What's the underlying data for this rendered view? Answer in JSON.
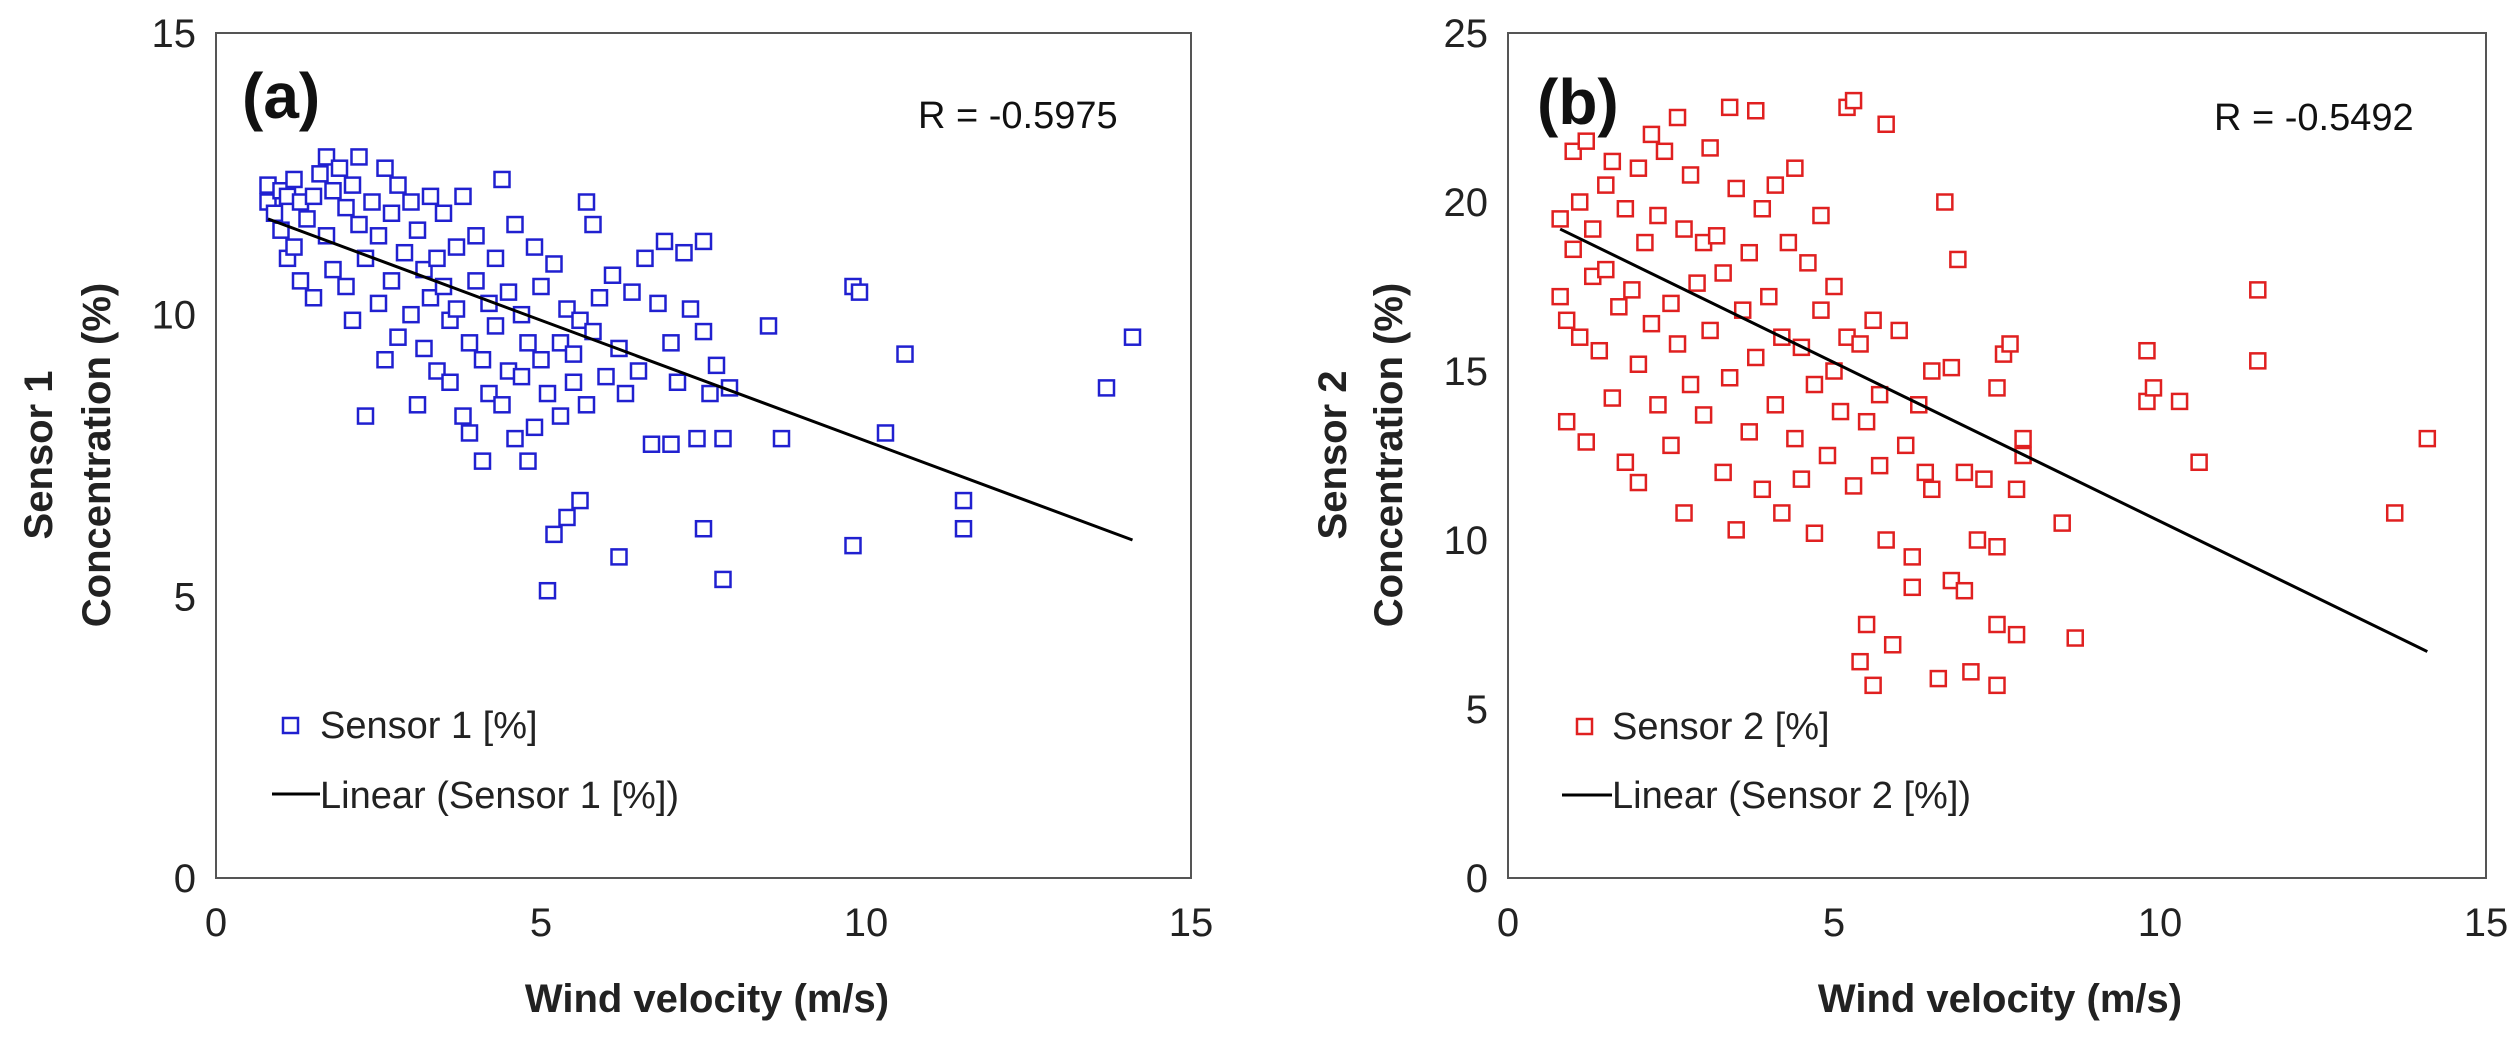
{
  "chart_data": [
    {
      "type": "scatter",
      "panel_label": "(a)",
      "annotation": "R = -0.5975",
      "xlabel": "Wind velocity (m/s)",
      "ylabel_line1": "Sensor 1",
      "ylabel_line2": "Concentration (%)",
      "xlim": [
        0,
        15
      ],
      "ylim": [
        0,
        15
      ],
      "xticks": [
        "0",
        "5",
        "10",
        "15"
      ],
      "yticks": [
        "0",
        "5",
        "10",
        "15"
      ],
      "legend_position": "bottom-left",
      "marker_color": "#2020d0",
      "trend_color": "#000000",
      "series": [
        {
          "name": "Sensor 1 [%]",
          "points": [
            [
              0.8,
              12.3
            ],
            [
              0.8,
              12.0
            ],
            [
              0.9,
              11.8
            ],
            [
              1.0,
              12.2
            ],
            [
              1.0,
              11.5
            ],
            [
              1.1,
              11.0
            ],
            [
              1.1,
              12.1
            ],
            [
              1.2,
              12.4
            ],
            [
              1.2,
              11.2
            ],
            [
              1.3,
              10.6
            ],
            [
              1.3,
              12.0
            ],
            [
              1.4,
              11.7
            ],
            [
              1.5,
              12.1
            ],
            [
              1.5,
              10.3
            ],
            [
              1.6,
              12.5
            ],
            [
              1.7,
              12.8
            ],
            [
              1.7,
              11.4
            ],
            [
              1.8,
              12.2
            ],
            [
              1.8,
              10.8
            ],
            [
              1.9,
              12.6
            ],
            [
              2.0,
              11.9
            ],
            [
              2.0,
              10.5
            ],
            [
              2.1,
              12.3
            ],
            [
              2.1,
              9.9
            ],
            [
              2.2,
              11.6
            ],
            [
              2.2,
              12.8
            ],
            [
              2.3,
              11.0
            ],
            [
              2.3,
              8.2
            ],
            [
              2.4,
              12.0
            ],
            [
              2.5,
              11.4
            ],
            [
              2.5,
              10.2
            ],
            [
              2.6,
              12.6
            ],
            [
              2.6,
              9.2
            ],
            [
              2.7,
              11.8
            ],
            [
              2.7,
              10.6
            ],
            [
              2.8,
              12.3
            ],
            [
              2.8,
              9.6
            ],
            [
              2.9,
              11.1
            ],
            [
              3.0,
              12.0
            ],
            [
              3.0,
              10.0
            ],
            [
              3.1,
              8.4
            ],
            [
              3.1,
              11.5
            ],
            [
              3.2,
              10.8
            ],
            [
              3.2,
              9.4
            ],
            [
              3.3,
              12.1
            ],
            [
              3.3,
              10.3
            ],
            [
              3.4,
              11.0
            ],
            [
              3.4,
              9.0
            ],
            [
              3.5,
              11.8
            ],
            [
              3.5,
              10.5
            ],
            [
              3.6,
              8.8
            ],
            [
              3.6,
              9.9
            ],
            [
              3.7,
              11.2
            ],
            [
              3.7,
              10.1
            ],
            [
              3.8,
              8.2
            ],
            [
              3.8,
              12.1
            ],
            [
              3.9,
              9.5
            ],
            [
              3.9,
              7.9
            ],
            [
              4.0,
              10.6
            ],
            [
              4.0,
              11.4
            ],
            [
              4.1,
              9.2
            ],
            [
              4.1,
              7.4
            ],
            [
              4.2,
              10.2
            ],
            [
              4.2,
              8.6
            ],
            [
              4.3,
              11.0
            ],
            [
              4.3,
              9.8
            ],
            [
              4.4,
              8.4
            ],
            [
              4.4,
              12.4
            ],
            [
              4.5,
              10.4
            ],
            [
              4.5,
              9.0
            ],
            [
              4.6,
              11.6
            ],
            [
              4.6,
              7.8
            ],
            [
              4.7,
              10.0
            ],
            [
              4.7,
              8.9
            ],
            [
              4.8,
              7.4
            ],
            [
              4.8,
              9.5
            ],
            [
              4.9,
              11.2
            ],
            [
              4.9,
              8.0
            ],
            [
              5.0,
              10.5
            ],
            [
              5.0,
              9.2
            ],
            [
              5.1,
              8.6
            ],
            [
              5.1,
              5.1
            ],
            [
              5.2,
              10.9
            ],
            [
              5.2,
              6.1
            ],
            [
              5.3,
              9.5
            ],
            [
              5.3,
              8.2
            ],
            [
              5.4,
              10.1
            ],
            [
              5.4,
              6.4
            ],
            [
              5.5,
              9.3
            ],
            [
              5.5,
              8.8
            ],
            [
              5.6,
              9.9
            ],
            [
              5.6,
              6.7
            ],
            [
              5.7,
              12.0
            ],
            [
              5.7,
              8.4
            ],
            [
              5.8,
              11.6
            ],
            [
              5.8,
              9.7
            ],
            [
              5.9,
              10.3
            ],
            [
              6.0,
              8.9
            ],
            [
              6.1,
              10.7
            ],
            [
              6.2,
              5.7
            ],
            [
              6.2,
              9.4
            ],
            [
              6.3,
              8.6
            ],
            [
              6.4,
              10.4
            ],
            [
              6.5,
              9.0
            ],
            [
              6.6,
              11.0
            ],
            [
              6.7,
              7.7
            ],
            [
              6.8,
              10.2
            ],
            [
              6.9,
              11.3
            ],
            [
              7.0,
              7.7
            ],
            [
              7.0,
              9.5
            ],
            [
              7.1,
              8.8
            ],
            [
              7.2,
              11.1
            ],
            [
              7.3,
              10.1
            ],
            [
              7.4,
              7.8
            ],
            [
              7.5,
              9.7
            ],
            [
              7.5,
              6.2
            ],
            [
              7.5,
              11.3
            ],
            [
              7.6,
              8.6
            ],
            [
              7.7,
              9.1
            ],
            [
              7.8,
              5.3
            ],
            [
              7.8,
              7.8
            ],
            [
              7.9,
              8.7
            ],
            [
              8.5,
              9.8
            ],
            [
              8.7,
              7.8
            ],
            [
              9.8,
              5.9
            ],
            [
              9.8,
              10.5
            ],
            [
              9.9,
              10.4
            ],
            [
              10.3,
              7.9
            ],
            [
              10.6,
              9.3
            ],
            [
              11.5,
              6.7
            ],
            [
              11.5,
              6.2
            ],
            [
              13.7,
              8.7
            ],
            [
              14.1,
              9.6
            ]
          ]
        }
      ],
      "trendline": {
        "name": "Linear (Sensor 1 [%])",
        "x": [
          0.8,
          14.1
        ],
        "y": [
          11.7,
          6.0
        ]
      }
    },
    {
      "type": "scatter",
      "panel_label": "(b)",
      "annotation": "R = -0.5492",
      "xlabel": "Wind velocity (m/s)",
      "ylabel_line1": "Sensor 2",
      "ylabel_line2": "Concentration (%)",
      "xlim": [
        0,
        15
      ],
      "ylim": [
        0,
        25
      ],
      "xticks": [
        "0",
        "5",
        "10",
        "15"
      ],
      "yticks": [
        "0",
        "5",
        "10",
        "15",
        "20",
        "25"
      ],
      "legend_position": "bottom-left",
      "marker_color": "#e02020",
      "trend_color": "#000000",
      "series": [
        {
          "name": "Sensor 2 [%]",
          "points": [
            [
              0.8,
              19.5
            ],
            [
              0.8,
              17.2
            ],
            [
              0.9,
              16.5
            ],
            [
              0.9,
              13.5
            ],
            [
              1.0,
              21.5
            ],
            [
              1.0,
              18.6
            ],
            [
              1.1,
              20.0
            ],
            [
              1.1,
              16.0
            ],
            [
              1.2,
              21.8
            ],
            [
              1.2,
              12.9
            ],
            [
              1.3,
              17.8
            ],
            [
              1.3,
              19.2
            ],
            [
              1.4,
              15.6
            ],
            [
              1.5,
              20.5
            ],
            [
              1.5,
              18.0
            ],
            [
              1.6,
              21.2
            ],
            [
              1.6,
              14.2
            ],
            [
              1.7,
              16.9
            ],
            [
              1.8,
              19.8
            ],
            [
              1.8,
              12.3
            ],
            [
              1.9,
              17.4
            ],
            [
              2.0,
              21.0
            ],
            [
              2.0,
              15.2
            ],
            [
              2.0,
              11.7
            ],
            [
              2.1,
              18.8
            ],
            [
              2.2,
              22.0
            ],
            [
              2.2,
              16.4
            ],
            [
              2.3,
              19.6
            ],
            [
              2.3,
              14.0
            ],
            [
              2.4,
              21.5
            ],
            [
              2.5,
              17.0
            ],
            [
              2.5,
              12.8
            ],
            [
              2.6,
              22.5
            ],
            [
              2.6,
              15.8
            ],
            [
              2.7,
              19.2
            ],
            [
              2.7,
              10.8
            ],
            [
              2.8,
              20.8
            ],
            [
              2.8,
              14.6
            ],
            [
              2.9,
              17.6
            ],
            [
              3.0,
              18.8
            ],
            [
              3.0,
              13.7
            ],
            [
              3.1,
              21.6
            ],
            [
              3.1,
              16.2
            ],
            [
              3.2,
              19.0
            ],
            [
              3.3,
              12.0
            ],
            [
              3.3,
              17.9
            ],
            [
              3.4,
              22.8
            ],
            [
              3.4,
              14.8
            ],
            [
              3.5,
              20.4
            ],
            [
              3.5,
              10.3
            ],
            [
              3.6,
              16.8
            ],
            [
              3.7,
              18.5
            ],
            [
              3.7,
              13.2
            ],
            [
              3.8,
              22.7
            ],
            [
              3.8,
              15.4
            ],
            [
              3.9,
              19.8
            ],
            [
              3.9,
              11.5
            ],
            [
              4.0,
              17.2
            ],
            [
              4.1,
              20.5
            ],
            [
              4.1,
              14.0
            ],
            [
              4.2,
              16.0
            ],
            [
              4.2,
              10.8
            ],
            [
              4.3,
              18.8
            ],
            [
              4.4,
              13.0
            ],
            [
              4.4,
              21.0
            ],
            [
              4.5,
              15.7
            ],
            [
              4.5,
              11.8
            ],
            [
              4.6,
              18.2
            ],
            [
              4.7,
              10.2
            ],
            [
              4.7,
              14.6
            ],
            [
              4.8,
              16.8
            ],
            [
              4.8,
              19.6
            ],
            [
              4.9,
              12.5
            ],
            [
              5.0,
              17.5
            ],
            [
              5.0,
              15.0
            ],
            [
              5.1,
              13.8
            ],
            [
              5.2,
              22.8
            ],
            [
              5.2,
              16.0
            ],
            [
              5.3,
              23.0
            ],
            [
              5.3,
              11.6
            ],
            [
              5.4,
              15.8
            ],
            [
              5.4,
              6.4
            ],
            [
              5.5,
              13.5
            ],
            [
              5.5,
              7.5
            ],
            [
              5.6,
              16.5
            ],
            [
              5.6,
              5.7
            ],
            [
              5.7,
              12.2
            ],
            [
              5.7,
              14.3
            ],
            [
              5.8,
              22.3
            ],
            [
              5.8,
              10.0
            ],
            [
              5.9,
              6.9
            ],
            [
              6.0,
              16.2
            ],
            [
              6.1,
              12.8
            ],
            [
              6.2,
              9.5
            ],
            [
              6.2,
              8.6
            ],
            [
              6.3,
              14.0
            ],
            [
              6.4,
              12.0
            ],
            [
              6.5,
              15.0
            ],
            [
              6.5,
              11.5
            ],
            [
              6.6,
              5.9
            ],
            [
              6.7,
              20.0
            ],
            [
              6.8,
              15.1
            ],
            [
              6.8,
              8.8
            ],
            [
              6.9,
              18.3
            ],
            [
              7.0,
              12.0
            ],
            [
              7.0,
              8.5
            ],
            [
              7.1,
              6.1
            ],
            [
              7.2,
              10.0
            ],
            [
              7.3,
              11.8
            ],
            [
              7.5,
              14.5
            ],
            [
              7.5,
              9.8
            ],
            [
              7.5,
              7.5
            ],
            [
              7.5,
              5.7
            ],
            [
              7.6,
              15.5
            ],
            [
              7.7,
              15.8
            ],
            [
              7.8,
              11.5
            ],
            [
              7.8,
              7.2
            ],
            [
              7.9,
              13.0
            ],
            [
              7.9,
              12.5
            ],
            [
              8.5,
              10.5
            ],
            [
              8.7,
              7.1
            ],
            [
              9.8,
              15.6
            ],
            [
              9.8,
              14.1
            ],
            [
              9.9,
              14.5
            ],
            [
              10.3,
              14.1
            ],
            [
              10.6,
              12.3
            ],
            [
              11.5,
              17.4
            ],
            [
              11.5,
              15.3
            ],
            [
              13.6,
              10.8
            ],
            [
              14.1,
              13.0
            ]
          ]
        }
      ],
      "trendline": {
        "name": "Linear (Sensor 2 [%])",
        "x": [
          0.8,
          14.1
        ],
        "y": [
          19.2,
          6.7
        ]
      }
    }
  ]
}
